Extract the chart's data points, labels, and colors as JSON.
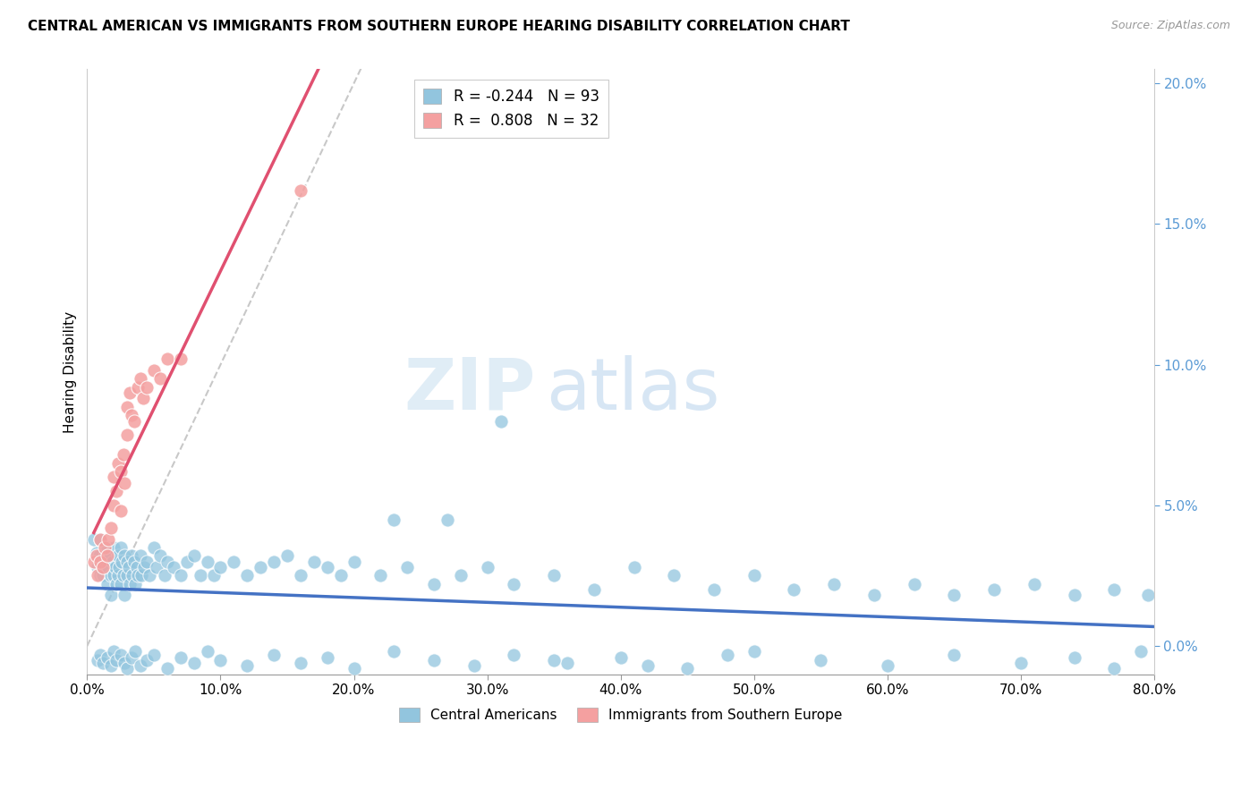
{
  "title": "CENTRAL AMERICAN VS IMMIGRANTS FROM SOUTHERN EUROPE HEARING DISABILITY CORRELATION CHART",
  "source": "Source: ZipAtlas.com",
  "ylabel": "Hearing Disability",
  "r1": -0.244,
  "n1": 93,
  "r2": 0.808,
  "n2": 32,
  "color1": "#92C5DE",
  "color2": "#F4A0A0",
  "trend_color1": "#4472C4",
  "trend_color2": "#E05070",
  "diag_color": "#C8C8C8",
  "watermark_zip": "ZIP",
  "watermark_atlas": "atlas",
  "xlim": [
    0.0,
    0.8
  ],
  "ylim": [
    -0.01,
    0.205
  ],
  "xticks": [
    0.0,
    0.1,
    0.2,
    0.3,
    0.4,
    0.5,
    0.6,
    0.7,
    0.8
  ],
  "yticks": [
    0.0,
    0.05,
    0.1,
    0.15,
    0.2
  ],
  "series1_x": [
    0.005,
    0.007,
    0.008,
    0.009,
    0.01,
    0.01,
    0.011,
    0.012,
    0.013,
    0.014,
    0.015,
    0.015,
    0.016,
    0.017,
    0.018,
    0.018,
    0.019,
    0.02,
    0.02,
    0.021,
    0.022,
    0.023,
    0.023,
    0.024,
    0.025,
    0.025,
    0.026,
    0.027,
    0.028,
    0.028,
    0.03,
    0.03,
    0.031,
    0.032,
    0.033,
    0.034,
    0.035,
    0.036,
    0.037,
    0.038,
    0.04,
    0.041,
    0.043,
    0.045,
    0.047,
    0.05,
    0.052,
    0.055,
    0.058,
    0.06,
    0.065,
    0.07,
    0.075,
    0.08,
    0.085,
    0.09,
    0.095,
    0.1,
    0.11,
    0.12,
    0.13,
    0.14,
    0.15,
    0.16,
    0.17,
    0.18,
    0.19,
    0.2,
    0.22,
    0.24,
    0.26,
    0.28,
    0.3,
    0.32,
    0.35,
    0.38,
    0.41,
    0.44,
    0.47,
    0.5,
    0.53,
    0.56,
    0.59,
    0.62,
    0.65,
    0.68,
    0.71,
    0.74,
    0.77,
    0.795,
    0.23,
    0.27,
    0.31
  ],
  "series1_y": [
    0.038,
    0.033,
    0.028,
    0.032,
    0.025,
    0.038,
    0.03,
    0.025,
    0.032,
    0.028,
    0.022,
    0.035,
    0.028,
    0.032,
    0.025,
    0.018,
    0.03,
    0.025,
    0.035,
    0.028,
    0.022,
    0.032,
    0.025,
    0.028,
    0.035,
    0.022,
    0.03,
    0.025,
    0.032,
    0.018,
    0.03,
    0.025,
    0.028,
    0.022,
    0.032,
    0.025,
    0.03,
    0.022,
    0.028,
    0.025,
    0.032,
    0.025,
    0.028,
    0.03,
    0.025,
    0.035,
    0.028,
    0.032,
    0.025,
    0.03,
    0.028,
    0.025,
    0.03,
    0.032,
    0.025,
    0.03,
    0.025,
    0.028,
    0.03,
    0.025,
    0.028,
    0.03,
    0.032,
    0.025,
    0.03,
    0.028,
    0.025,
    0.03,
    0.025,
    0.028,
    0.022,
    0.025,
    0.028,
    0.022,
    0.025,
    0.02,
    0.028,
    0.025,
    0.02,
    0.025,
    0.02,
    0.022,
    0.018,
    0.022,
    0.018,
    0.02,
    0.022,
    0.018,
    0.02,
    0.018,
    0.045,
    0.045,
    0.08
  ],
  "series1_y_extra": [
    -0.005,
    -0.003,
    -0.006,
    -0.004,
    -0.007,
    -0.002,
    -0.005,
    -0.003,
    -0.006,
    -0.008,
    -0.004,
    -0.002,
    -0.007,
    -0.005,
    -0.003,
    -0.008,
    -0.004,
    -0.006,
    -0.002,
    -0.005,
    -0.007,
    -0.003,
    -0.006,
    -0.004,
    -0.008,
    -0.002,
    -0.005,
    -0.007,
    -0.003,
    -0.006,
    -0.004,
    -0.008,
    -0.002,
    -0.005,
    -0.007,
    -0.003,
    -0.006,
    -0.004,
    -0.008,
    -0.002,
    -0.005,
    -0.007,
    -0.003
  ],
  "series1_x_extra": [
    0.008,
    0.01,
    0.012,
    0.015,
    0.018,
    0.02,
    0.022,
    0.025,
    0.028,
    0.03,
    0.033,
    0.036,
    0.04,
    0.045,
    0.05,
    0.06,
    0.07,
    0.08,
    0.09,
    0.1,
    0.12,
    0.14,
    0.16,
    0.18,
    0.2,
    0.23,
    0.26,
    0.29,
    0.32,
    0.36,
    0.4,
    0.45,
    0.5,
    0.55,
    0.6,
    0.65,
    0.7,
    0.74,
    0.77,
    0.79,
    0.35,
    0.42,
    0.48
  ],
  "series2_x": [
    0.005,
    0.007,
    0.008,
    0.01,
    0.01,
    0.012,
    0.013,
    0.015,
    0.016,
    0.018,
    0.02,
    0.02,
    0.022,
    0.023,
    0.025,
    0.025,
    0.027,
    0.028,
    0.03,
    0.03,
    0.032,
    0.033,
    0.035,
    0.038,
    0.04,
    0.042,
    0.045,
    0.05,
    0.055,
    0.06,
    0.07,
    0.16
  ],
  "series2_y": [
    0.03,
    0.032,
    0.025,
    0.03,
    0.038,
    0.028,
    0.035,
    0.032,
    0.038,
    0.042,
    0.05,
    0.06,
    0.055,
    0.065,
    0.062,
    0.048,
    0.068,
    0.058,
    0.075,
    0.085,
    0.09,
    0.082,
    0.08,
    0.092,
    0.095,
    0.088,
    0.092,
    0.098,
    0.095,
    0.102,
    0.102,
    0.162
  ]
}
